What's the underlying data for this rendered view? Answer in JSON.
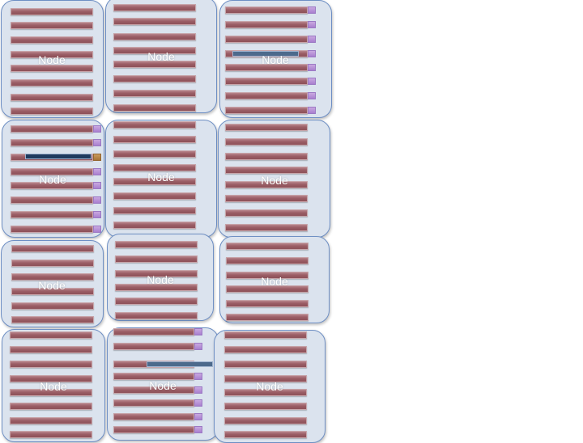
{
  "nodes": [
    {
      "id": "r1c1",
      "label": "Node"
    },
    {
      "id": "r1c2",
      "label": "Node"
    },
    {
      "id": "r1c3",
      "label": "Node"
    },
    {
      "id": "r2c1",
      "label": "Node"
    },
    {
      "id": "r2c2",
      "label": "Node"
    },
    {
      "id": "r2c3",
      "label": "Node"
    },
    {
      "id": "r3c1",
      "label": "Node"
    },
    {
      "id": "r3c2",
      "label": "Node"
    },
    {
      "id": "r3c3",
      "label": "Node"
    },
    {
      "id": "r4c1",
      "label": "Node"
    },
    {
      "id": "r4c2",
      "label": "Node"
    },
    {
      "id": "r4c3",
      "label": "Node"
    }
  ],
  "colors": {
    "node_fill": "#dbe3ee",
    "node_border": "#6e8fc4",
    "slot": "#9b5e66",
    "tag": "#b08ad6",
    "bar_dark": "#1f3a5f",
    "bar_steel": "#4d6a8c"
  }
}
